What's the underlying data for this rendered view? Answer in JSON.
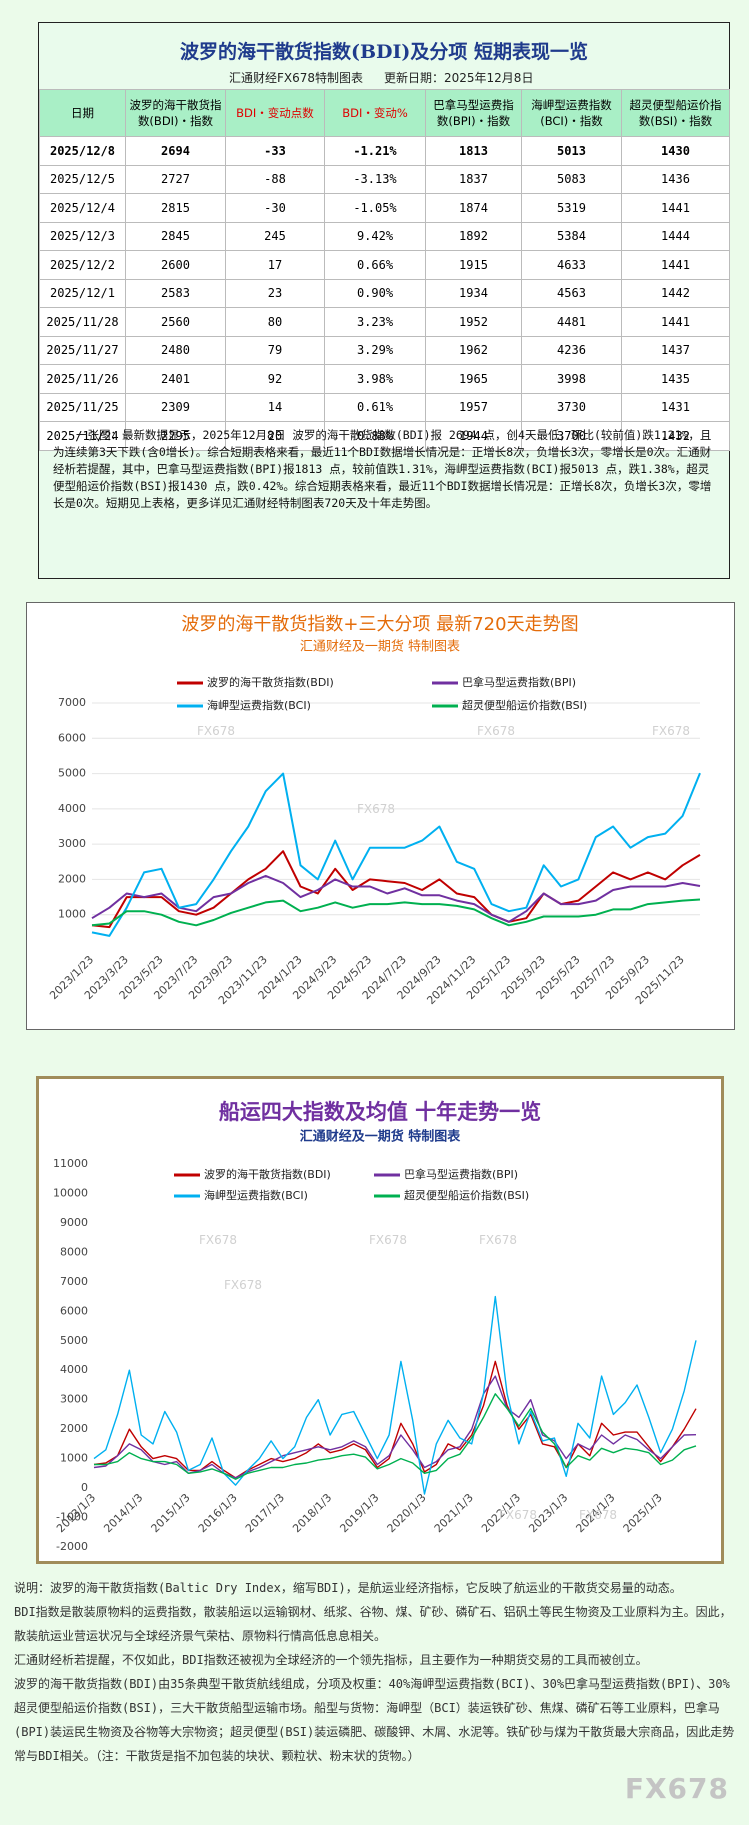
{
  "header": {
    "title": "波罗的海干散货指数(BDI)及分项  短期表现一览",
    "subtitle_left": "汇通财经FX678特制图表",
    "subtitle_right": "更新日期：2025年12月8日"
  },
  "table": {
    "columns": [
      "日期",
      "波罗的海干散货指数(BDI)・指数",
      "BDI・变动点数",
      "BDI・变动%",
      "巴拿马型运费指数(BPI)・指数",
      "海岬型运费指数(BCI)・指数",
      "超灵便型船运价指数(BSI)・指数"
    ],
    "rows": [
      [
        "2025/12/8",
        "2694",
        "-33",
        "-1.21%",
        "1813",
        "5013",
        "1430"
      ],
      [
        "2025/12/5",
        "2727",
        "-88",
        "-3.13%",
        "1837",
        "5083",
        "1436"
      ],
      [
        "2025/12/4",
        "2815",
        "-30",
        "-1.05%",
        "1874",
        "5319",
        "1441"
      ],
      [
        "2025/12/3",
        "2845",
        "245",
        "9.42%",
        "1892",
        "5384",
        "1444"
      ],
      [
        "2025/12/2",
        "2600",
        "17",
        "0.66%",
        "1915",
        "4633",
        "1441"
      ],
      [
        "2025/12/1",
        "2583",
        "23",
        "0.90%",
        "1934",
        "4563",
        "1442"
      ],
      [
        "2025/11/28",
        "2560",
        "80",
        "3.23%",
        "1952",
        "4481",
        "1441"
      ],
      [
        "2025/11/27",
        "2480",
        "79",
        "3.29%",
        "1962",
        "4236",
        "1437"
      ],
      [
        "2025/11/26",
        "2401",
        "92",
        "3.98%",
        "1965",
        "3998",
        "1435"
      ],
      [
        "2025/11/25",
        "2309",
        "14",
        "0.61%",
        "1957",
        "3730",
        "1431"
      ],
      [
        "2025/11/24",
        "2295",
        "20",
        "0.88%",
        "1944",
        "3700",
        "1432"
      ]
    ]
  },
  "summary": "一张图：最新数据显示，2025年12月8日 波罗的海干散货指数(BDI)报 2694 点，创4天最低，环比(较前值)跌1.21%，且为连续第3天下跌(含0增长)。综合短期表格来看，最近11个BDI数据增长情况是：正增长8次，负增长3次，零增长是0次。汇通财经析若提醒，其中，巴拿马型运费指数(BPI)报1813 点，较前值跌1.31%，海岬型运费指数(BCI)报5013 点，跌1.38%，超灵便型船运价指数(BSI)报1430 点，跌0.42%。综合短期表格来看，最近11个BDI数据增长情况是：正增长8次，负增长3次，零增长是0次。短期见上表格，更多详见汇通财经特制图表720天及十年走势图。",
  "chart_data": [
    {
      "type": "line",
      "title": "波罗的海干散货指数+三大分项  最新720天走势图",
      "subtitle": "汇通财经及一期货 特制图表",
      "watermark": "FX678",
      "grid": true,
      "categories": [
        "2023/1/23",
        null,
        "2023/3/23",
        null,
        "2023/5/23",
        null,
        "2023/7/23",
        null,
        "2023/9/23",
        null,
        "2023/11/23",
        null,
        "2024/1/23",
        null,
        "2024/3/23",
        null,
        "2024/5/23",
        null,
        "2024/7/23",
        null,
        "2024/9/23",
        null,
        "2024/11/23",
        null,
        "2025/1/23",
        null,
        "2025/3/23",
        null,
        "2025/5/23",
        null,
        "2025/7/23",
        null,
        "2025/9/23",
        null,
        "2025/11/23",
        null
      ],
      "ylim": [
        0,
        7000
      ],
      "yticks": [
        1000,
        2000,
        3000,
        4000,
        5000,
        6000,
        7000
      ],
      "series": [
        {
          "name": "波罗的海干散货指数(BDI)",
          "color": "#c00000",
          "values": [
            700,
            650,
            1500,
            1500,
            1500,
            1100,
            1000,
            1200,
            1600,
            2000,
            2300,
            2800,
            1800,
            1600,
            2300,
            1700,
            2000,
            1950,
            1900,
            1700,
            2000,
            1600,
            1500,
            1000,
            800,
            900,
            1600,
            1300,
            1400,
            1800,
            2200,
            2000,
            2200,
            2000,
            2400,
            2694
          ]
        },
        {
          "name": "巴拿马型运费指数(BPI)",
          "color": "#7030a0",
          "values": [
            900,
            1200,
            1600,
            1500,
            1600,
            1200,
            1100,
            1500,
            1600,
            1900,
            2100,
            1900,
            1500,
            1700,
            2000,
            1800,
            1800,
            1600,
            1750,
            1550,
            1550,
            1400,
            1300,
            1000,
            800,
            1100,
            1600,
            1300,
            1300,
            1400,
            1700,
            1800,
            1800,
            1800,
            1900,
            1813
          ]
        },
        {
          "name": "海岬型运费指数(BCI)",
          "color": "#00b0f0",
          "values": [
            500,
            400,
            1200,
            2200,
            2300,
            1200,
            1300,
            2000,
            2800,
            3500,
            4500,
            5000,
            2400,
            2000,
            3100,
            2000,
            2900,
            2900,
            2900,
            3100,
            3500,
            2500,
            2300,
            1300,
            1100,
            1200,
            2400,
            1800,
            2000,
            3200,
            3500,
            2900,
            3200,
            3300,
            3800,
            5013
          ]
        },
        {
          "name": "超灵便型船运价指数(BSI)",
          "color": "#00b050",
          "values": [
            700,
            750,
            1100,
            1100,
            1000,
            800,
            700,
            850,
            1050,
            1200,
            1350,
            1400,
            1100,
            1200,
            1350,
            1200,
            1300,
            1300,
            1350,
            1300,
            1300,
            1250,
            1150,
            900,
            700,
            800,
            950,
            950,
            950,
            1000,
            1150,
            1150,
            1300,
            1350,
            1400,
            1430
          ]
        }
      ]
    },
    {
      "type": "line",
      "title": "船运四大指数及均值 十年走势一览",
      "subtitle": "汇通财经及一期货 特制图表",
      "watermark": "FX678",
      "grid": false,
      "categories": [
        "2013/1/3",
        null,
        null,
        null,
        "2014/1/3",
        null,
        null,
        null,
        "2015/1/3",
        null,
        null,
        null,
        "2016/1/3",
        null,
        null,
        null,
        "2017/1/3",
        null,
        null,
        null,
        "2018/1/3",
        null,
        null,
        null,
        "2019/1/3",
        null,
        null,
        null,
        "2020/1/3",
        null,
        null,
        null,
        "2021/1/3",
        null,
        null,
        null,
        "2022/1/3",
        null,
        null,
        null,
        "2023/1/3",
        null,
        null,
        null,
        "2024/1/3",
        null,
        null,
        null,
        "2025/1/3",
        null,
        null,
        null
      ],
      "ylim": [
        -2000,
        11000
      ],
      "yticks": [
        -2000,
        -1000,
        0,
        1000,
        2000,
        3000,
        4000,
        5000,
        6000,
        7000,
        8000,
        9000,
        10000,
        11000
      ],
      "series": [
        {
          "name": "波罗的海干散货指数(BDI)",
          "color": "#c00000",
          "values": [
            800,
            850,
            1100,
            2000,
            1400,
            1000,
            1100,
            1000,
            600,
            600,
            900,
            600,
            350,
            600,
            800,
            1000,
            900,
            1000,
            1200,
            1500,
            1200,
            1300,
            1500,
            1300,
            700,
            1000,
            2200,
            1500,
            550,
            800,
            1500,
            1300,
            1800,
            2800,
            4300,
            2800,
            2000,
            2500,
            1500,
            1400,
            700,
            1500,
            1100,
            2200,
            1800,
            1900,
            1900,
            1400,
            900,
            1400,
            2000,
            2694
          ]
        },
        {
          "name": "巴拿马型运费指数(BPI)",
          "color": "#7030a0",
          "values": [
            700,
            750,
            1100,
            1500,
            1300,
            900,
            800,
            900,
            500,
            600,
            800,
            500,
            350,
            550,
            700,
            900,
            1100,
            1200,
            1300,
            1400,
            1300,
            1400,
            1600,
            1400,
            800,
            1100,
            1800,
            1300,
            700,
            900,
            1300,
            1400,
            2000,
            3200,
            3800,
            2700,
            2400,
            3000,
            1800,
            1600,
            1000,
            1500,
            1300,
            1800,
            1500,
            1800,
            1650,
            1300,
            1000,
            1400,
            1800,
            1813
          ]
        },
        {
          "name": "海岬型运费指数(BCI)",
          "color": "#00b0f0",
          "values": [
            1000,
            1300,
            2500,
            4000,
            1800,
            1500,
            2600,
            1900,
            600,
            800,
            1700,
            500,
            100,
            600,
            1000,
            1600,
            1000,
            1400,
            2400,
            3000,
            1800,
            2500,
            2600,
            1800,
            1000,
            1800,
            4300,
            2300,
            -200,
            1500,
            2300,
            1700,
            1500,
            3200,
            6500,
            3200,
            1500,
            2600,
            1600,
            1700,
            400,
            2200,
            1700,
            3800,
            2500,
            2900,
            3500,
            2400,
            1200,
            2000,
            3300,
            5013
          ]
        },
        {
          "name": "超灵便型船运价指数(BSI)",
          "color": "#00b050",
          "values": [
            800,
            800,
            900,
            1200,
            1000,
            900,
            900,
            800,
            500,
            550,
            650,
            500,
            300,
            500,
            600,
            700,
            700,
            800,
            850,
            950,
            1000,
            1100,
            1150,
            1050,
            650,
            800,
            1000,
            850,
            500,
            600,
            1000,
            1150,
            1700,
            2400,
            3200,
            2700,
            2100,
            2700,
            1900,
            1500,
            700,
            1100,
            950,
            1350,
            1200,
            1350,
            1300,
            1200,
            800,
            950,
            1300,
            1430
          ]
        }
      ]
    }
  ],
  "footer": {
    "paragraphs": [
      "说明：波罗的海干散货指数(Baltic Dry Index，缩写BDI)，是航运业经济指标，它反映了航运业的干散货交易量的动态。",
      "BDI指数是散装原物料的运费指数，散装船运以运输钢材、纸浆、谷物、煤、矿砂、磷矿石、铝矾土等民生物资及工业原料为主。因此，散装航运业营运状况与全球经济景气荣枯、原物料行情高低息息相关。",
      "汇通财经析若提醒，不仅如此，BDI指数还被视为全球经济的一个领先指标，且主要作为一种期货交易的工具而被创立。",
      "波罗的海干散货指数(BDI)由35条典型干散货航线组成，分项及权重：40%海岬型运费指数(BCI)、30%巴拿马型运费指数(BPI)、30%超灵便型船运价指数(BSI)，三大干散货船型运输市场。船型与货物：海岬型（BCI）装运铁矿砂、焦煤、磷矿石等工业原料，巴拿马(BPI)装运民生物资及谷物等大宗物资；超灵便型(BSI)装运磷肥、碳酸钾、木屑、水泥等。铁矿砂与煤为干散货最大宗商品，因此走势常与BDI相关。（注：干散货是指不加包装的块状、颗粒状、粉末状的货物。）"
    ],
    "watermark": "FX678"
  }
}
